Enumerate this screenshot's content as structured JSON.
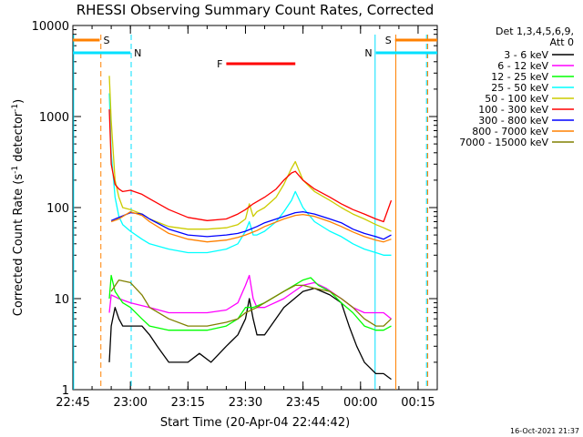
{
  "chart_data": {
    "type": "line",
    "title": "RHESSI Observing Summary Count Rates, Corrected",
    "xlabel": "Start Time (20-Apr-04 22:44:42)",
    "ylabel_main": "Corrected Count Rate (s",
    "ylabel_sup1": "-1",
    "ylabel_mid": " detector",
    "ylabel_sup2": "-1",
    "ylabel_end": ")",
    "x_unit": "minutes after 22:45",
    "xlim": [
      0,
      95
    ],
    "ylim": [
      1,
      10000
    ],
    "yscale": "log",
    "x_ticks": [
      {
        "x": 0,
        "label": "22:45"
      },
      {
        "x": 15,
        "label": "23:00"
      },
      {
        "x": 30,
        "label": "23:15"
      },
      {
        "x": 45,
        "label": "23:30"
      },
      {
        "x": 60,
        "label": "23:45"
      },
      {
        "x": 75,
        "label": "00:00"
      },
      {
        "x": 90,
        "label": "00:15"
      }
    ],
    "y_ticks": [
      {
        "y": 1,
        "label": "1"
      },
      {
        "y": 10,
        "label": "10"
      },
      {
        "y": 100,
        "label": "100"
      },
      {
        "y": 1000,
        "label": "1000"
      },
      {
        "y": 10000,
        "label": "10000"
      }
    ],
    "legend_header": [
      "Det 1,3,4,5,6,9,",
      "Att 0"
    ],
    "legend_placement": "right",
    "series": [
      {
        "name": "3 - 6 keV",
        "color": "#000000",
        "points": [
          [
            9.5,
            2
          ],
          [
            10,
            5
          ],
          [
            11,
            8
          ],
          [
            12,
            6
          ],
          [
            13,
            5
          ],
          [
            15,
            5
          ],
          [
            18,
            5
          ],
          [
            20,
            4
          ],
          [
            22,
            3
          ],
          [
            25,
            2
          ],
          [
            28,
            2
          ],
          [
            30,
            2
          ],
          [
            33,
            2.5
          ],
          [
            36,
            2
          ],
          [
            40,
            3
          ],
          [
            43,
            4
          ],
          [
            45,
            6
          ],
          [
            46,
            10
          ],
          [
            47,
            6
          ],
          [
            48,
            4
          ],
          [
            50,
            4
          ],
          [
            55,
            8
          ],
          [
            60,
            12
          ],
          [
            63,
            13
          ],
          [
            67,
            11
          ],
          [
            70,
            9
          ],
          [
            72,
            5
          ],
          [
            74,
            3
          ],
          [
            76,
            2
          ],
          [
            79,
            1.5
          ],
          [
            81,
            1.5
          ],
          [
            83,
            1.3
          ]
        ]
      },
      {
        "name": "6 - 12 keV",
        "color": "#ff00ff",
        "points": [
          [
            9.5,
            7
          ],
          [
            10,
            11
          ],
          [
            12,
            10
          ],
          [
            15,
            9
          ],
          [
            20,
            8
          ],
          [
            25,
            7
          ],
          [
            30,
            7
          ],
          [
            35,
            7
          ],
          [
            40,
            7.5
          ],
          [
            43,
            9
          ],
          [
            45,
            14
          ],
          [
            46,
            18
          ],
          [
            47,
            10
          ],
          [
            48,
            8
          ],
          [
            50,
            8
          ],
          [
            55,
            10
          ],
          [
            60,
            14
          ],
          [
            63,
            15
          ],
          [
            66,
            13
          ],
          [
            70,
            10
          ],
          [
            73,
            8
          ],
          [
            76,
            7
          ],
          [
            79,
            7
          ],
          [
            81,
            7
          ],
          [
            83,
            6
          ]
        ]
      },
      {
        "name": "12 - 25 keV",
        "color": "#00ff00",
        "points": [
          [
            9.5,
            10
          ],
          [
            10,
            18
          ],
          [
            11,
            12
          ],
          [
            13,
            9
          ],
          [
            15,
            8
          ],
          [
            18,
            6
          ],
          [
            20,
            5
          ],
          [
            25,
            4.5
          ],
          [
            30,
            4.5
          ],
          [
            35,
            4.5
          ],
          [
            40,
            5
          ],
          [
            43,
            6
          ],
          [
            45,
            8
          ],
          [
            47,
            8
          ],
          [
            50,
            9
          ],
          [
            55,
            12
          ],
          [
            60,
            16
          ],
          [
            62,
            17
          ],
          [
            64,
            14
          ],
          [
            67,
            12
          ],
          [
            70,
            9
          ],
          [
            73,
            7
          ],
          [
            76,
            5
          ],
          [
            79,
            4.5
          ],
          [
            81,
            4.5
          ],
          [
            83,
            5
          ]
        ]
      },
      {
        "name": "25 - 50 keV",
        "color": "#00ffff",
        "points": [
          [
            9.5,
            1800
          ],
          [
            10,
            400
          ],
          [
            11,
            130
          ],
          [
            12,
            80
          ],
          [
            13,
            65
          ],
          [
            15,
            55
          ],
          [
            18,
            45
          ],
          [
            20,
            40
          ],
          [
            25,
            35
          ],
          [
            30,
            32
          ],
          [
            35,
            32
          ],
          [
            40,
            35
          ],
          [
            43,
            40
          ],
          [
            45,
            55
          ],
          [
            46,
            70
          ],
          [
            47,
            50
          ],
          [
            48,
            50
          ],
          [
            50,
            55
          ],
          [
            53,
            70
          ],
          [
            55,
            90
          ],
          [
            57,
            120
          ],
          [
            58,
            150
          ],
          [
            60,
            100
          ],
          [
            63,
            70
          ],
          [
            67,
            55
          ],
          [
            70,
            48
          ],
          [
            73,
            40
          ],
          [
            76,
            35
          ],
          [
            79,
            32
          ],
          [
            81,
            30
          ],
          [
            83,
            30
          ]
        ]
      },
      {
        "name": "50 - 100 keV",
        "color": "#cccc00",
        "points": [
          [
            9.5,
            2800
          ],
          [
            10,
            900
          ],
          [
            11,
            200
          ],
          [
            12,
            130
          ],
          [
            13,
            100
          ],
          [
            15,
            95
          ],
          [
            18,
            85
          ],
          [
            20,
            75
          ],
          [
            25,
            62
          ],
          [
            30,
            58
          ],
          [
            35,
            58
          ],
          [
            40,
            60
          ],
          [
            43,
            65
          ],
          [
            45,
            75
          ],
          [
            46,
            110
          ],
          [
            47,
            80
          ],
          [
            48,
            90
          ],
          [
            50,
            100
          ],
          [
            53,
            130
          ],
          [
            55,
            180
          ],
          [
            57,
            270
          ],
          [
            58,
            320
          ],
          [
            60,
            200
          ],
          [
            63,
            150
          ],
          [
            67,
            120
          ],
          [
            70,
            100
          ],
          [
            73,
            85
          ],
          [
            76,
            75
          ],
          [
            79,
            65
          ],
          [
            81,
            60
          ],
          [
            83,
            55
          ]
        ]
      },
      {
        "name": "100 - 300 keV",
        "color": "#ff0000",
        "points": [
          [
            9.5,
            1200
          ],
          [
            10,
            300
          ],
          [
            11,
            180
          ],
          [
            12,
            160
          ],
          [
            13,
            150
          ],
          [
            15,
            155
          ],
          [
            18,
            140
          ],
          [
            20,
            125
          ],
          [
            25,
            95
          ],
          [
            30,
            78
          ],
          [
            35,
            72
          ],
          [
            40,
            75
          ],
          [
            43,
            85
          ],
          [
            45,
            95
          ],
          [
            47,
            110
          ],
          [
            50,
            130
          ],
          [
            53,
            160
          ],
          [
            55,
            200
          ],
          [
            57,
            240
          ],
          [
            58,
            250
          ],
          [
            60,
            200
          ],
          [
            63,
            160
          ],
          [
            67,
            130
          ],
          [
            70,
            110
          ],
          [
            73,
            95
          ],
          [
            76,
            85
          ],
          [
            79,
            75
          ],
          [
            81,
            70
          ],
          [
            83,
            120
          ]
        ]
      },
      {
        "name": "300 - 800 keV",
        "color": "#0000ff",
        "points": [
          [
            10,
            72
          ],
          [
            12,
            78
          ],
          [
            15,
            88
          ],
          [
            18,
            85
          ],
          [
            20,
            75
          ],
          [
            25,
            58
          ],
          [
            30,
            50
          ],
          [
            35,
            48
          ],
          [
            40,
            50
          ],
          [
            43,
            52
          ],
          [
            45,
            55
          ],
          [
            48,
            62
          ],
          [
            50,
            68
          ],
          [
            55,
            80
          ],
          [
            58,
            88
          ],
          [
            60,
            90
          ],
          [
            63,
            85
          ],
          [
            67,
            75
          ],
          [
            70,
            68
          ],
          [
            73,
            58
          ],
          [
            76,
            52
          ],
          [
            79,
            48
          ],
          [
            81,
            45
          ],
          [
            83,
            50
          ]
        ]
      },
      {
        "name": "800 - 7000 keV",
        "color": "#ff8000",
        "points": [
          [
            10,
            70
          ],
          [
            12,
            75
          ],
          [
            15,
            90
          ],
          [
            18,
            82
          ],
          [
            20,
            70
          ],
          [
            25,
            52
          ],
          [
            30,
            45
          ],
          [
            35,
            42
          ],
          [
            40,
            44
          ],
          [
            43,
            47
          ],
          [
            45,
            50
          ],
          [
            48,
            56
          ],
          [
            50,
            62
          ],
          [
            55,
            75
          ],
          [
            58,
            82
          ],
          [
            60,
            84
          ],
          [
            63,
            80
          ],
          [
            67,
            70
          ],
          [
            70,
            62
          ],
          [
            73,
            54
          ],
          [
            76,
            48
          ],
          [
            79,
            44
          ],
          [
            81,
            42
          ],
          [
            83,
            45
          ]
        ]
      },
      {
        "name": "7000 - 15000 keV",
        "color": "#808000",
        "points": [
          [
            10,
            12
          ],
          [
            12,
            16
          ],
          [
            15,
            15
          ],
          [
            18,
            11
          ],
          [
            20,
            8
          ],
          [
            25,
            6
          ],
          [
            30,
            5
          ],
          [
            35,
            5
          ],
          [
            40,
            5.5
          ],
          [
            43,
            6
          ],
          [
            45,
            7
          ],
          [
            48,
            8
          ],
          [
            50,
            9
          ],
          [
            55,
            12
          ],
          [
            58,
            14
          ],
          [
            60,
            14
          ],
          [
            63,
            13
          ],
          [
            67,
            12
          ],
          [
            70,
            10
          ],
          [
            73,
            8
          ],
          [
            76,
            6
          ],
          [
            79,
            5
          ],
          [
            81,
            5
          ],
          [
            83,
            6
          ]
        ]
      }
    ],
    "markers": [
      {
        "label": "S",
        "color": "#ff8000",
        "x_from": 0,
        "x_to": 7,
        "level": 0.04
      },
      {
        "label": "S",
        "color": "#ff8000",
        "x_from": 84,
        "x_to": 95,
        "level": 0.04
      },
      {
        "label": "N",
        "color": "#00e0ff",
        "x_from": 0,
        "x_to": 15,
        "level": 0.075
      },
      {
        "label": "N",
        "color": "#00e0ff",
        "x_from": 79,
        "x_to": 95,
        "level": 0.075
      },
      {
        "label": "F",
        "color": "#ff0000",
        "x_from": 40,
        "x_to": 58,
        "level": 0.105
      }
    ],
    "vlines": [
      {
        "x": 0.2,
        "color": "#00e0ff",
        "style": "solid"
      },
      {
        "x": 7.3,
        "color": "#ff8000",
        "style": "dashed"
      },
      {
        "x": 15.2,
        "color": "#00e0ff",
        "style": "dashed"
      },
      {
        "x": 78.8,
        "color": "#00e0ff",
        "style": "solid"
      },
      {
        "x": 84.2,
        "color": "#ff8000",
        "style": "solid"
      },
      {
        "x": 92.5,
        "color": "#ff8000",
        "style": "dashed"
      },
      {
        "x": 92.2,
        "color": "#00e0ff",
        "style": "dashed"
      }
    ],
    "footer_date": "16-Oct-2021 21:37"
  }
}
